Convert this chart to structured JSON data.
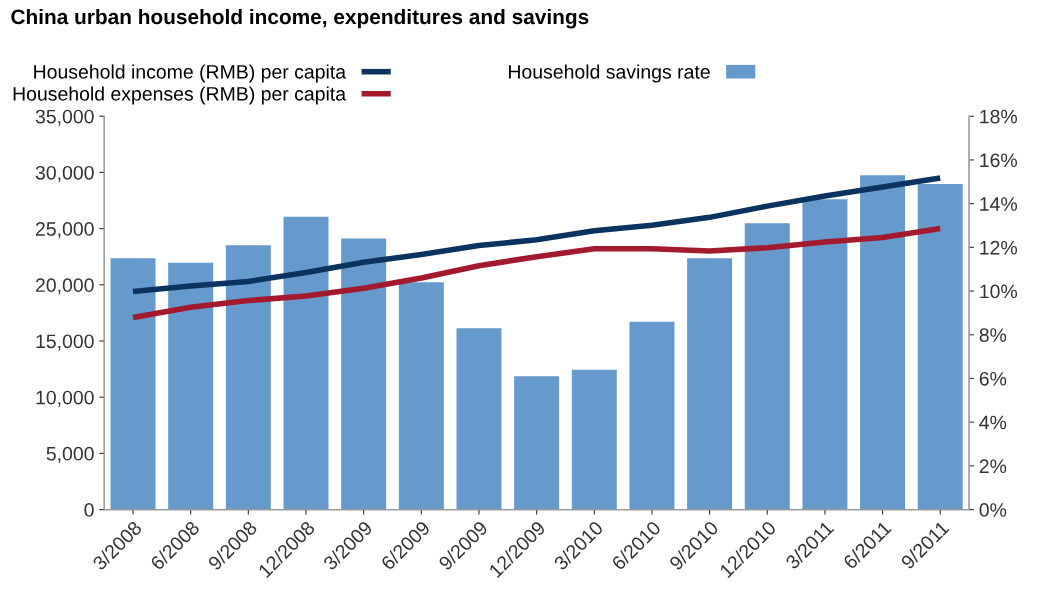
{
  "chart_data": {
    "type": "bar",
    "title": "China urban household income, expenditures and savings",
    "categories": [
      "3/2008",
      "6/2008",
      "9/2008",
      "12/2008",
      "3/2009",
      "6/2009",
      "9/2009",
      "12/2009",
      "3/2010",
      "6/2010",
      "9/2010",
      "12/2010",
      "3/2011",
      "6/2011",
      "9/2011"
    ],
    "series": [
      {
        "name": "Household income (RMB) per capita",
        "type": "line",
        "color": "#0b3360",
        "values": [
          19400,
          19900,
          20300,
          21100,
          22000,
          22700,
          23500,
          24000,
          24800,
          25300,
          26000,
          27000,
          27900,
          28700,
          29500
        ]
      },
      {
        "name": "Household expenses (RMB) per capita",
        "type": "line",
        "color": "#a3192e",
        "values": [
          17100,
          18000,
          18600,
          19000,
          19700,
          20600,
          21700,
          22500,
          23200,
          23200,
          23000,
          23300,
          23800,
          24200,
          25000
        ]
      },
      {
        "name": "Household savings rate",
        "axis": "y2",
        "color": "#6699cc",
        "values": [
          11.5,
          11.3,
          12.1,
          13.4,
          12.4,
          10.4,
          8.3,
          6.1,
          6.4,
          8.6,
          11.5,
          13.1,
          14.2,
          15.3,
          14.9
        ]
      }
    ],
    "ylim": [
      0,
      35000
    ],
    "yticks": [
      {
        "value": 0,
        "label": "0"
      },
      {
        "value": 5000,
        "label": "5,000"
      },
      {
        "value": 10000,
        "label": "10,000"
      },
      {
        "value": 15000,
        "label": "15,000"
      },
      {
        "value": 20000,
        "label": "20,000"
      },
      {
        "value": 25000,
        "label": "25,000"
      },
      {
        "value": 30000,
        "label": "30,000"
      },
      {
        "value": 35000,
        "label": "35,000"
      }
    ],
    "y2lim": [
      0,
      18
    ],
    "y2ticks": [
      {
        "value": 0,
        "label": "0%"
      },
      {
        "value": 2,
        "label": "2%"
      },
      {
        "value": 4,
        "label": "4%"
      },
      {
        "value": 6,
        "label": "6%"
      },
      {
        "value": 8,
        "label": "8%"
      },
      {
        "value": 10,
        "label": "10%"
      },
      {
        "value": 12,
        "label": "12%"
      },
      {
        "value": 14,
        "label": "14%"
      },
      {
        "value": 16,
        "label": "16%"
      },
      {
        "value": 18,
        "label": "18%"
      }
    ],
    "grid": false,
    "legend": "top left",
    "marker": "none",
    "line_style": "solid"
  }
}
